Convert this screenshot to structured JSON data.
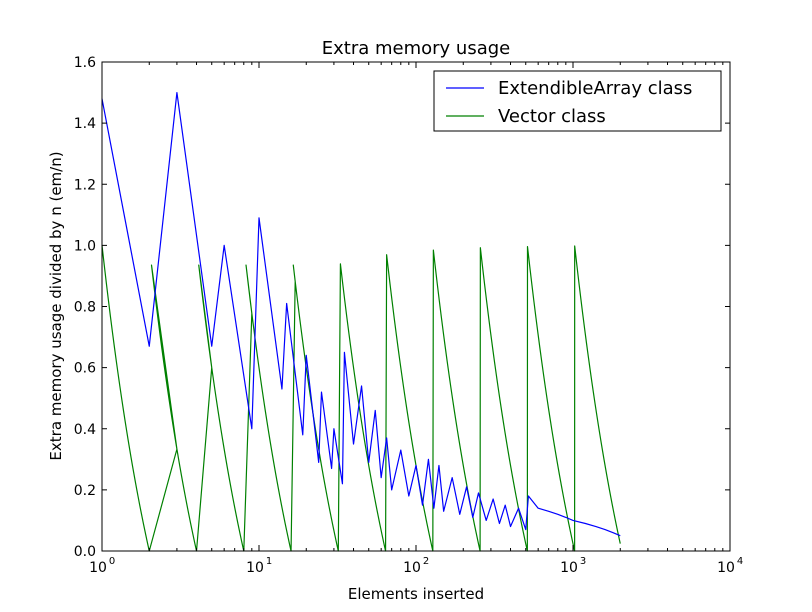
{
  "chart_data": {
    "type": "line",
    "title": "Extra memory usage",
    "xlabel": "Elements inserted",
    "ylabel": "Extra memory usage divided by n (em/n)",
    "xscale": "log",
    "xlim": [
      1,
      10000
    ],
    "ylim": [
      0.0,
      1.6
    ],
    "x_ticks": [
      {
        "value": 1,
        "base": "10",
        "exp": "0"
      },
      {
        "value": 10,
        "base": "10",
        "exp": "1"
      },
      {
        "value": 100,
        "base": "10",
        "exp": "2"
      },
      {
        "value": 1000,
        "base": "10",
        "exp": "3"
      },
      {
        "value": 10000,
        "base": "10",
        "exp": "4"
      }
    ],
    "y_ticks": [
      {
        "value": 0.0,
        "label": "0.0"
      },
      {
        "value": 0.2,
        "label": "0.2"
      },
      {
        "value": 0.4,
        "label": "0.4"
      },
      {
        "value": 0.6,
        "label": "0.6"
      },
      {
        "value": 0.8,
        "label": "0.8"
      },
      {
        "value": 1.0,
        "label": "1.0"
      },
      {
        "value": 1.2,
        "label": "1.2"
      },
      {
        "value": 1.4,
        "label": "1.4"
      },
      {
        "value": 1.6,
        "label": "1.6"
      }
    ],
    "grid": false,
    "legend_position": "top-right",
    "series": [
      {
        "name": "ExtendibleArray class",
        "color": "#0000ff",
        "x": [
          1,
          2,
          3,
          5,
          6,
          9,
          10,
          14,
          15,
          19,
          20,
          24,
          25,
          29,
          30,
          34,
          35,
          40,
          45,
          50,
          55,
          60,
          65,
          70,
          80,
          90,
          100,
          110,
          120,
          130,
          140,
          150,
          170,
          190,
          210,
          230,
          250,
          280,
          310,
          340,
          370,
          400,
          450,
          500,
          520,
          600,
          700,
          800,
          900,
          1000,
          1200,
          1400,
          1600,
          1800,
          2000
        ],
        "y": [
          1.48,
          0.67,
          1.5,
          0.67,
          1.0,
          0.4,
          1.09,
          0.53,
          0.81,
          0.38,
          0.64,
          0.29,
          0.52,
          0.27,
          0.4,
          0.22,
          0.65,
          0.35,
          0.54,
          0.29,
          0.46,
          0.24,
          0.37,
          0.2,
          0.33,
          0.18,
          0.28,
          0.15,
          0.3,
          0.14,
          0.28,
          0.13,
          0.24,
          0.12,
          0.21,
          0.11,
          0.19,
          0.1,
          0.17,
          0.09,
          0.15,
          0.08,
          0.14,
          0.07,
          0.18,
          0.14,
          0.13,
          0.12,
          0.11,
          0.1,
          0.09,
          0.08,
          0.07,
          0.06,
          0.05
        ]
      },
      {
        "name": "Vector class",
        "color": "#008000",
        "capacities": [
          2,
          4,
          8,
          16,
          32,
          64,
          128,
          256,
          512,
          1024,
          2048
        ],
        "x_end": 2000
      }
    ]
  }
}
